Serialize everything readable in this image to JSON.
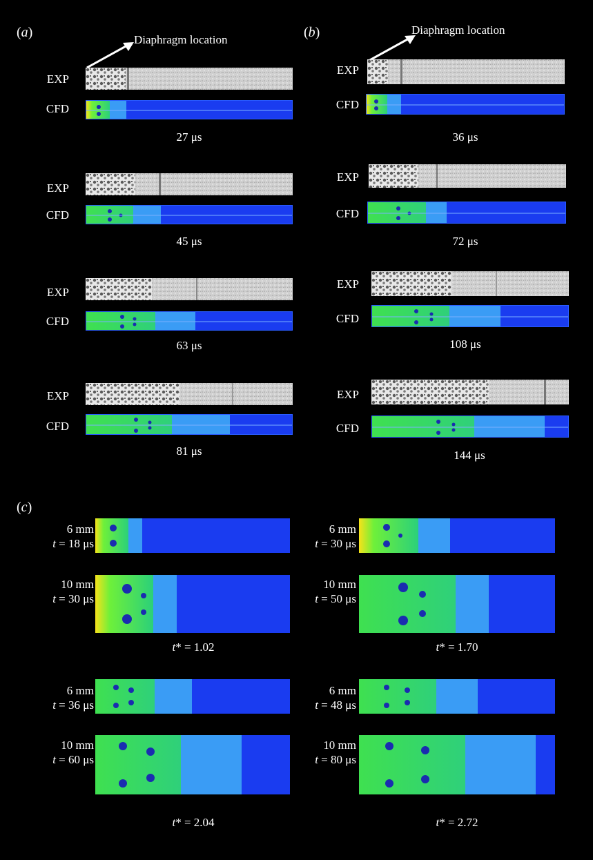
{
  "panels": {
    "a": {
      "label_open": "(",
      "label_letter": "a",
      "label_close": ")",
      "annotation": "Diaphragm location",
      "exp_label": "EXP",
      "cfd_label": "CFD",
      "times": [
        "27 μs",
        "45 μs",
        "63 μs",
        "81 μs"
      ]
    },
    "b": {
      "label_open": "(",
      "label_letter": "b",
      "label_close": ")",
      "annotation": "Diaphragm location",
      "exp_label": "EXP",
      "cfd_label": "CFD",
      "times": [
        "36 μs",
        "72 μs",
        "108 μs",
        "144 μs"
      ]
    },
    "c": {
      "label_open": "(",
      "label_letter": "c",
      "label_close": ")",
      "groups": [
        {
          "left": {
            "small": {
              "size": "6 mm",
              "t": " = 18 μs"
            },
            "large": {
              "size": "10 mm",
              "t": " = 30 μs"
            },
            "tstar": "* = 1.02"
          },
          "right": {
            "small": {
              "size": "6 mm",
              "t": " = 30 μs"
            },
            "large": {
              "size": "10 mm",
              "t": " = 50 μs"
            },
            "tstar": "* = 1.70"
          }
        },
        {
          "left": {
            "small": {
              "size": "6 mm",
              "t": " = 36 μs"
            },
            "large": {
              "size": "10 mm",
              "t": " = 60 μs"
            },
            "tstar": "* = 2.04"
          },
          "right": {
            "small": {
              "size": "6 mm",
              "t": " = 48 μs"
            },
            "large": {
              "size": "10 mm",
              "t": " = 80 μs"
            },
            "tstar": "* = 2.72"
          }
        }
      ],
      "t_symbol": "t"
    }
  },
  "colors": {
    "background": "#000000",
    "exp_gray": "#cfcfcf",
    "cfd_blue": "#1a3cf0",
    "cfd_lightblue": "#3a9cf5",
    "cfd_green": "#3fe04a",
    "cfd_yellow": "#e8f020"
  }
}
